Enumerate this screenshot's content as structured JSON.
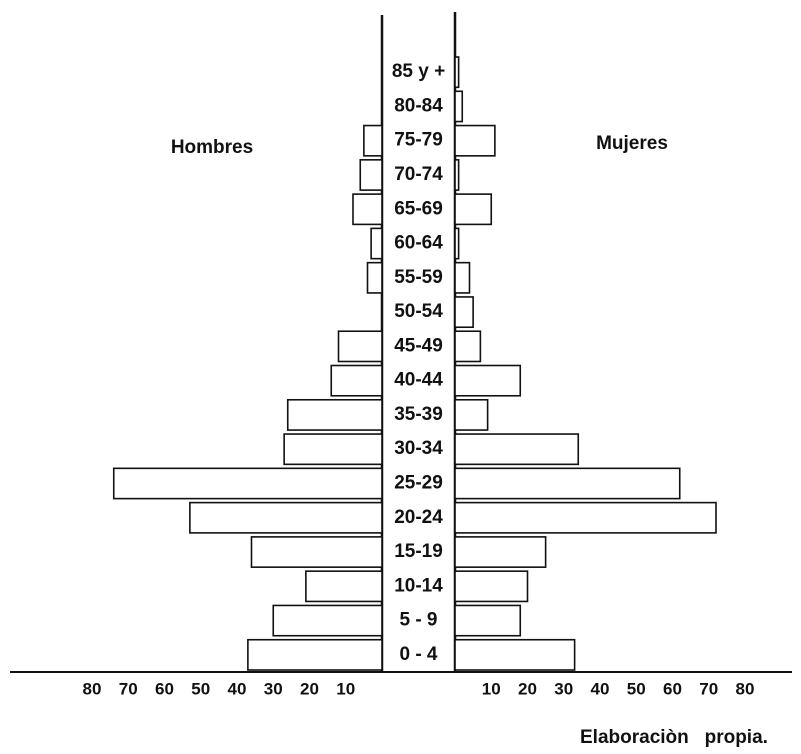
{
  "chart_data": {
    "type": "pyramid",
    "categories": [
      "0 - 4",
      "5 - 9",
      "10-14",
      "15-19",
      "20-24",
      "25-29",
      "30-34",
      "35-39",
      "40-44",
      "45-49",
      "50-54",
      "55-59",
      "60-64",
      "65-69",
      "70-74",
      "75-79",
      "80-84",
      "85 y +"
    ],
    "series": [
      {
        "name": "Hombres",
        "color": "#ffffff",
        "values": [
          37,
          30,
          21,
          36,
          53,
          74,
          27,
          26,
          14,
          12,
          0,
          4,
          3,
          8,
          6,
          5,
          0,
          0
        ]
      },
      {
        "name": "Mujeres",
        "color": "#ffffff",
        "values": [
          33,
          18,
          20,
          25,
          72,
          62,
          34,
          9,
          18,
          7,
          5,
          4,
          1,
          10,
          1,
          11,
          2,
          1
        ]
      }
    ],
    "xlim": [
      0,
      80
    ],
    "xticks": [
      10,
      20,
      30,
      40,
      50,
      60,
      70,
      80
    ],
    "annotation": "Elaboraciòn   propia."
  }
}
